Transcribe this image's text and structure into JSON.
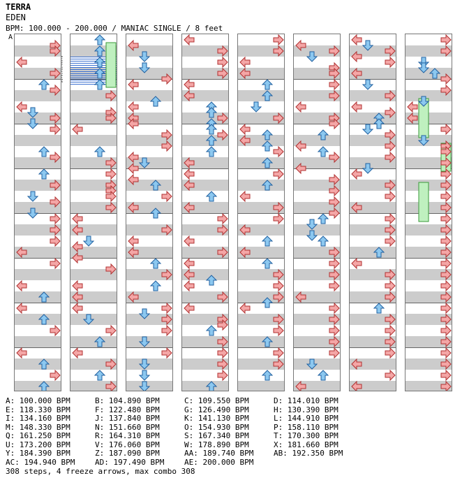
{
  "header": {
    "title": "TERRA",
    "artist": "EDEN",
    "info": "BPM: 100.000 - 200.000 / MANIAC SINGLE / 8 feet"
  },
  "colors": {
    "left": "#f4a6a6",
    "down": "#8cc8f0",
    "up": "#8cc8f0",
    "right": "#f4a6a6",
    "freeze": "#bff0bf",
    "shock": "#e8a0f0",
    "speed": "#3a6fd0"
  },
  "chart": {
    "lanes": [
      "left",
      "down",
      "up",
      "right"
    ],
    "columns": [
      {
        "bpm_marks": [
          "A"
        ],
        "notes": [
          [
            1,
            "right"
          ],
          [
            2,
            "right"
          ],
          [
            4,
            "left"
          ],
          [
            6,
            "right"
          ],
          [
            8,
            "up"
          ],
          [
            9,
            "right"
          ],
          [
            12,
            "left"
          ],
          [
            13,
            "down"
          ],
          [
            14,
            "right"
          ],
          [
            15,
            "down"
          ],
          [
            16,
            "right"
          ],
          [
            20,
            "up"
          ],
          [
            21,
            "right"
          ],
          [
            24,
            "up"
          ],
          [
            26,
            "right"
          ],
          [
            28,
            "down"
          ],
          [
            29,
            "right"
          ],
          [
            31,
            "down"
          ],
          [
            32,
            "right"
          ],
          [
            34,
            "right"
          ],
          [
            36,
            "right"
          ],
          [
            38,
            "left"
          ],
          [
            40,
            "right"
          ],
          [
            44,
            "left"
          ],
          [
            46,
            "up"
          ],
          [
            48,
            "left"
          ],
          [
            50,
            "up"
          ],
          [
            52,
            "right"
          ],
          [
            56,
            "left"
          ],
          [
            58,
            "up"
          ],
          [
            60,
            "right"
          ],
          [
            62,
            "up"
          ]
        ],
        "freezes": []
      },
      {
        "bpm_marks": [
          "B",
          "C",
          "D",
          "E",
          "F",
          "G",
          "H",
          "I",
          "J",
          "K",
          "L",
          "M",
          "N"
        ],
        "notes": [
          [
            0,
            "up"
          ],
          [
            2,
            "up"
          ],
          [
            4,
            "up"
          ],
          [
            6,
            "up"
          ],
          [
            8,
            "up"
          ],
          [
            10,
            "right"
          ],
          [
            13,
            "right"
          ],
          [
            14,
            "right"
          ],
          [
            16,
            "left"
          ],
          [
            20,
            "up"
          ],
          [
            22,
            "right"
          ],
          [
            24,
            "right"
          ],
          [
            26,
            "right"
          ],
          [
            27,
            "right"
          ],
          [
            28,
            "right"
          ],
          [
            30,
            "right"
          ],
          [
            32,
            "left"
          ],
          [
            34,
            "left"
          ],
          [
            36,
            "down"
          ],
          [
            37,
            "left"
          ],
          [
            39,
            "left"
          ],
          [
            41,
            "right"
          ],
          [
            44,
            "left"
          ],
          [
            46,
            "left"
          ],
          [
            48,
            "left"
          ],
          [
            50,
            "down"
          ],
          [
            52,
            "right"
          ],
          [
            54,
            "up"
          ],
          [
            56,
            "left"
          ],
          [
            58,
            "right"
          ],
          [
            60,
            "up"
          ],
          [
            62,
            "right"
          ]
        ],
        "freezes": [
          [
            1,
            9,
            "right"
          ]
        ]
      },
      {
        "bpm_marks": [],
        "notes": [
          [
            1,
            "left"
          ],
          [
            3,
            "down"
          ],
          [
            5,
            "down"
          ],
          [
            7,
            "right"
          ],
          [
            8,
            "left"
          ],
          [
            11,
            "up"
          ],
          [
            12,
            "left"
          ],
          [
            14,
            "left"
          ],
          [
            15,
            "left"
          ],
          [
            17,
            "right"
          ],
          [
            19,
            "right"
          ],
          [
            21,
            "left"
          ],
          [
            22,
            "down"
          ],
          [
            23,
            "left"
          ],
          [
            25,
            "left"
          ],
          [
            26,
            "up"
          ],
          [
            28,
            "right"
          ],
          [
            30,
            "left"
          ],
          [
            31,
            "up"
          ],
          [
            34,
            "right"
          ],
          [
            36,
            "left"
          ],
          [
            38,
            "left"
          ],
          [
            40,
            "up"
          ],
          [
            42,
            "right"
          ],
          [
            44,
            "up"
          ],
          [
            46,
            "left"
          ],
          [
            48,
            "right"
          ],
          [
            49,
            "down"
          ],
          [
            50,
            "right"
          ],
          [
            52,
            "right"
          ],
          [
            54,
            "down"
          ],
          [
            56,
            "right"
          ],
          [
            58,
            "down"
          ],
          [
            60,
            "down"
          ],
          [
            62,
            "down"
          ]
        ],
        "freezes": []
      },
      {
        "bpm_marks": [],
        "notes": [
          [
            0,
            "left"
          ],
          [
            2,
            "right"
          ],
          [
            4,
            "right"
          ],
          [
            6,
            "right"
          ],
          [
            8,
            "left"
          ],
          [
            10,
            "left"
          ],
          [
            12,
            "up"
          ],
          [
            13,
            "up"
          ],
          [
            14,
            "right"
          ],
          [
            15,
            "up"
          ],
          [
            16,
            "up"
          ],
          [
            17,
            "right"
          ],
          [
            18,
            "up"
          ],
          [
            20,
            "up"
          ],
          [
            22,
            "left"
          ],
          [
            24,
            "left"
          ],
          [
            26,
            "left"
          ],
          [
            28,
            "up"
          ],
          [
            30,
            "left"
          ],
          [
            32,
            "right"
          ],
          [
            34,
            "right"
          ],
          [
            36,
            "left"
          ],
          [
            38,
            "right"
          ],
          [
            40,
            "left"
          ],
          [
            42,
            "left"
          ],
          [
            43,
            "up"
          ],
          [
            44,
            "left"
          ],
          [
            46,
            "right"
          ],
          [
            48,
            "left"
          ],
          [
            50,
            "right"
          ],
          [
            51,
            "right"
          ],
          [
            52,
            "up"
          ],
          [
            54,
            "right"
          ],
          [
            56,
            "right"
          ],
          [
            58,
            "right"
          ],
          [
            60,
            "right"
          ],
          [
            62,
            "up"
          ]
        ],
        "freezes": []
      },
      {
        "bpm_marks": [],
        "notes": [
          [
            0,
            "right"
          ],
          [
            2,
            "right"
          ],
          [
            4,
            "left"
          ],
          [
            6,
            "left"
          ],
          [
            8,
            "up"
          ],
          [
            10,
            "up"
          ],
          [
            12,
            "down"
          ],
          [
            14,
            "right"
          ],
          [
            16,
            "left"
          ],
          [
            17,
            "up"
          ],
          [
            18,
            "left"
          ],
          [
            19,
            "up"
          ],
          [
            20,
            "right"
          ],
          [
            22,
            "up"
          ],
          [
            24,
            "right"
          ],
          [
            26,
            "up"
          ],
          [
            28,
            "left"
          ],
          [
            30,
            "right"
          ],
          [
            32,
            "right"
          ],
          [
            34,
            "left"
          ],
          [
            36,
            "up"
          ],
          [
            38,
            "left"
          ],
          [
            40,
            "up"
          ],
          [
            42,
            "right"
          ],
          [
            44,
            "right"
          ],
          [
            46,
            "right"
          ],
          [
            47,
            "up"
          ],
          [
            48,
            "left"
          ],
          [
            50,
            "right"
          ],
          [
            52,
            "right"
          ],
          [
            54,
            "up"
          ],
          [
            56,
            "right"
          ],
          [
            58,
            "right"
          ],
          [
            60,
            "up"
          ]
        ],
        "freezes": []
      },
      {
        "bpm_marks": [],
        "notes": [
          [
            1,
            "left"
          ],
          [
            2,
            "right"
          ],
          [
            3,
            "down"
          ],
          [
            5,
            "right"
          ],
          [
            6,
            "right"
          ],
          [
            8,
            "right"
          ],
          [
            10,
            "right"
          ],
          [
            12,
            "left"
          ],
          [
            14,
            "right"
          ],
          [
            15,
            "right"
          ],
          [
            17,
            "up"
          ],
          [
            19,
            "left"
          ],
          [
            20,
            "up"
          ],
          [
            21,
            "right"
          ],
          [
            23,
            "left"
          ],
          [
            25,
            "right"
          ],
          [
            27,
            "right"
          ],
          [
            29,
            "right"
          ],
          [
            31,
            "right"
          ],
          [
            32,
            "up"
          ],
          [
            33,
            "down"
          ],
          [
            35,
            "down"
          ],
          [
            36,
            "up"
          ],
          [
            38,
            "right"
          ],
          [
            40,
            "right"
          ],
          [
            42,
            "right"
          ],
          [
            44,
            "right"
          ],
          [
            46,
            "left"
          ],
          [
            48,
            "right"
          ],
          [
            50,
            "right"
          ],
          [
            52,
            "right"
          ],
          [
            54,
            "right"
          ],
          [
            56,
            "right"
          ],
          [
            58,
            "down"
          ],
          [
            60,
            "up"
          ],
          [
            62,
            "left"
          ]
        ],
        "freezes": []
      },
      {
        "bpm_marks": [],
        "notes": [
          [
            0,
            "left"
          ],
          [
            1,
            "down"
          ],
          [
            2,
            "right"
          ],
          [
            3,
            "left"
          ],
          [
            4,
            "right"
          ],
          [
            6,
            "left"
          ],
          [
            8,
            "down"
          ],
          [
            10,
            "right"
          ],
          [
            12,
            "left"
          ],
          [
            13,
            "right"
          ],
          [
            14,
            "up"
          ],
          [
            15,
            "up"
          ],
          [
            16,
            "down"
          ],
          [
            17,
            "right"
          ],
          [
            19,
            "right"
          ],
          [
            21,
            "right"
          ],
          [
            23,
            "down"
          ],
          [
            24,
            "left"
          ],
          [
            26,
            "right"
          ],
          [
            28,
            "right"
          ],
          [
            30,
            "left"
          ],
          [
            32,
            "right"
          ],
          [
            34,
            "right"
          ],
          [
            36,
            "right"
          ],
          [
            38,
            "up"
          ],
          [
            40,
            "left"
          ],
          [
            42,
            "right"
          ],
          [
            44,
            "right"
          ],
          [
            46,
            "right"
          ],
          [
            48,
            "up"
          ],
          [
            50,
            "right"
          ],
          [
            52,
            "right"
          ],
          [
            54,
            "right"
          ],
          [
            56,
            "right"
          ],
          [
            58,
            "left"
          ],
          [
            60,
            "right"
          ],
          [
            62,
            "left"
          ]
        ],
        "freezes": []
      },
      {
        "bpm_marks": [],
        "notes": [
          [
            0,
            "right"
          ],
          [
            2,
            "right"
          ],
          [
            4,
            "down"
          ],
          [
            5,
            "down"
          ],
          [
            6,
            "up"
          ],
          [
            7,
            "right"
          ],
          [
            9,
            "right"
          ],
          [
            11,
            "down"
          ],
          [
            12,
            "left"
          ],
          [
            14,
            "left"
          ],
          [
            16,
            "right"
          ],
          [
            18,
            "down"
          ],
          [
            19,
            "right"
          ],
          [
            20,
            "right"
          ],
          [
            22,
            "right"
          ],
          [
            24,
            "right"
          ],
          [
            26,
            "right"
          ],
          [
            28,
            "right"
          ],
          [
            30,
            "right"
          ],
          [
            32,
            "right"
          ],
          [
            34,
            "right"
          ],
          [
            36,
            "right"
          ],
          [
            38,
            "right"
          ],
          [
            40,
            "right"
          ],
          [
            42,
            "right"
          ],
          [
            44,
            "right"
          ],
          [
            46,
            "right"
          ],
          [
            48,
            "right"
          ],
          [
            50,
            "right"
          ],
          [
            52,
            "right"
          ],
          [
            54,
            "right"
          ],
          [
            56,
            "right"
          ],
          [
            58,
            "right"
          ],
          [
            60,
            "right"
          ],
          [
            62,
            "right"
          ]
        ],
        "freezes": [
          [
            11,
            18,
            "down"
          ],
          [
            19,
            24,
            "right"
          ],
          [
            26,
            33,
            "down"
          ]
        ]
      }
    ]
  },
  "legend": [
    [
      "A: 100.000 BPM",
      "B: 104.890 BPM",
      "C: 109.550 BPM",
      "D: 114.010 BPM"
    ],
    [
      "E: 118.330 BPM",
      "F: 122.480 BPM",
      "G: 126.490 BPM",
      "H: 130.390 BPM"
    ],
    [
      "I: 134.160 BPM",
      "J: 137.840 BPM",
      "K: 141.130 BPM",
      "L: 144.910 BPM"
    ],
    [
      "M: 148.330 BPM",
      "N: 151.660 BPM",
      "O: 154.930 BPM",
      "P: 158.110 BPM"
    ],
    [
      "Q: 161.250 BPM",
      "R: 164.310 BPM",
      "S: 167.340 BPM",
      "T: 170.300 BPM"
    ],
    [
      "U: 173.200 BPM",
      "V: 176.060 BPM",
      "W: 178.890 BPM",
      "X: 181.660 BPM"
    ],
    [
      "Y: 184.390 BPM",
      "Z: 187.090 BPM",
      "AA: 189.740 BPM",
      "AB: 192.350 BPM"
    ],
    [
      "AC: 194.940 BPM",
      "AD: 197.490 BPM",
      "AE: 200.000 BPM"
    ]
  ],
  "footer": "308 steps, 4 freeze arrows, max combo 308"
}
